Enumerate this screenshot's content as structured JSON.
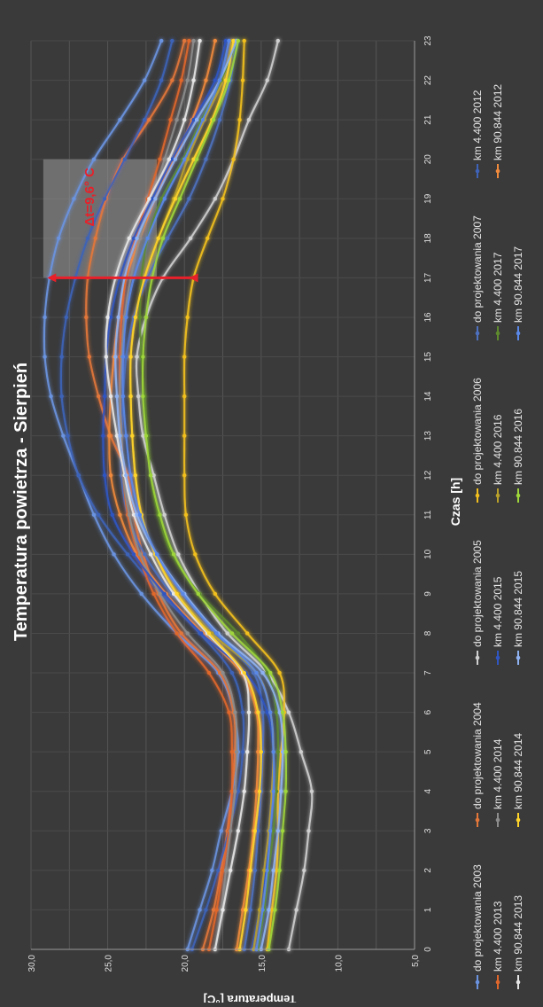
{
  "chart_data": {
    "type": "line",
    "title": "Temperatura powietrza - Sierpień",
    "xlabel": "Czas [h]",
    "ylabel": "Temperatura [°C]",
    "x": [
      0,
      1,
      2,
      3,
      4,
      5,
      6,
      7,
      8,
      9,
      10,
      11,
      12,
      13,
      14,
      15,
      16,
      17,
      18,
      19,
      20,
      21,
      22,
      23
    ],
    "x_ticks": [
      "0",
      "1",
      "2",
      "3",
      "4",
      "5",
      "6",
      "7",
      "8",
      "9",
      "10",
      "11",
      "12",
      "13",
      "14",
      "15",
      "16",
      "17",
      "18",
      "19",
      "20",
      "21",
      "22",
      "23"
    ],
    "ylim": [
      5,
      30
    ],
    "y_ticks": [
      "5,0",
      "10,0",
      "15,0",
      "20,0",
      "25,0",
      "30,0"
    ],
    "grid": true,
    "legend": "bottom",
    "annotation": {
      "text": "Δt=9,6° C",
      "x": 17,
      "y_top": 29.0,
      "y_bottom": 19.4
    },
    "series": [
      {
        "name": "do projektowania 2003",
        "color": "#6a93e0",
        "values": [
          19.8,
          19.0,
          18.2,
          17.6,
          16.9,
          16.5,
          16.8,
          17.8,
          20.5,
          22.8,
          24.6,
          25.9,
          26.9,
          27.9,
          28.7,
          29.1,
          29.1,
          28.8,
          28.2,
          27.2,
          25.9,
          24.2,
          22.6,
          21.5
        ]
      },
      {
        "name": "do projektowania 2004",
        "color": "#e3773a",
        "values": [
          18.8,
          18.1,
          17.6,
          17.2,
          16.9,
          16.7,
          16.8,
          17.7,
          20.2,
          21.7,
          22.7,
          23.3,
          23.7,
          24.8,
          25.6,
          26.2,
          26.4,
          26.3,
          25.8,
          25.1,
          24.0,
          22.3,
          20.8,
          20.0
        ]
      },
      {
        "name": "do projektowania 2005",
        "color": "#cfcfcf",
        "values": [
          13.2,
          12.7,
          12.2,
          11.9,
          11.7,
          12.4,
          13.2,
          14.6,
          17.2,
          19.0,
          20.4,
          21.3,
          22.0,
          22.7,
          23.0,
          23.1,
          22.5,
          21.4,
          19.6,
          18.0,
          16.8,
          15.8,
          14.6,
          13.9
        ]
      },
      {
        "name": "do projektowania 2006",
        "color": "#f2c01e",
        "values": [
          14.6,
          14.3,
          14.0,
          13.9,
          13.9,
          13.7,
          13.5,
          13.8,
          15.9,
          18.0,
          19.3,
          19.9,
          20.0,
          20.0,
          20.0,
          20.0,
          19.8,
          19.4,
          18.5,
          17.5,
          16.8,
          16.4,
          16.2,
          16.1
        ]
      },
      {
        "name": "do projektowania 2007",
        "color": "#4e71bf",
        "values": [
          16.1,
          15.7,
          15.4,
          15.2,
          15.0,
          14.9,
          14.9,
          15.5,
          18.1,
          20.8,
          22.6,
          23.7,
          24.1,
          24.1,
          24.0,
          23.8,
          23.3,
          22.4,
          21.1,
          19.7,
          18.6,
          17.7,
          17.0,
          16.6
        ]
      },
      {
        "name": "km 4.400 2012",
        "color": "#3e63b8",
        "values": [
          19.5,
          18.6,
          17.8,
          17.1,
          16.5,
          16.2,
          16.2,
          16.9,
          19.0,
          21.5,
          23.7,
          25.6,
          26.9,
          27.6,
          28.0,
          28.0,
          27.7,
          27.1,
          26.3,
          25.2,
          23.9,
          22.6,
          21.5,
          20.8
        ]
      },
      {
        "name": "km 90.844 2012",
        "color": "#f08a3c",
        "values": [
          16.6,
          16.2,
          15.8,
          15.5,
          15.3,
          15.2,
          15.3,
          16.3,
          18.8,
          21.2,
          23.1,
          24.2,
          24.8,
          24.9,
          24.8,
          24.6,
          24.3,
          23.8,
          22.9,
          21.9,
          20.7,
          19.5,
          18.6,
          18.0
        ]
      },
      {
        "name": "km 4.400 2013",
        "color": "#e0672b",
        "values": [
          18.4,
          17.9,
          17.5,
          17.1,
          16.9,
          16.9,
          17.1,
          18.4,
          20.5,
          22.0,
          23.0,
          23.7,
          24.0,
          24.1,
          24.2,
          24.2,
          24.1,
          23.8,
          23.2,
          22.4,
          21.6,
          20.9,
          20.2,
          19.7
        ]
      },
      {
        "name": "km 4.400 2014",
        "color": "#8d8d8d",
        "values": [
          18.0,
          17.6,
          17.3,
          17.0,
          16.7,
          16.6,
          16.7,
          17.5,
          19.8,
          21.6,
          22.9,
          23.6,
          24.0,
          24.1,
          24.2,
          24.1,
          23.9,
          23.5,
          22.9,
          22.1,
          21.3,
          20.5,
          19.8,
          19.4
        ]
      },
      {
        "name": "km 4.400 2015",
        "color": "#2f55c2",
        "values": [
          15.6,
          15.1,
          14.7,
          14.4,
          14.2,
          14.2,
          14.6,
          16.0,
          18.9,
          21.3,
          23.3,
          24.7,
          25.2,
          25.3,
          25.2,
          25.1,
          24.8,
          24.2,
          23.3,
          22.1,
          20.8,
          19.4,
          18.0,
          17.3
        ]
      },
      {
        "name": "km 4.400 2016",
        "color": "#b8a02a",
        "values": [
          15.5,
          15.1,
          14.8,
          14.5,
          14.3,
          14.2,
          14.4,
          15.3,
          18.2,
          20.4,
          21.9,
          22.8,
          23.2,
          23.4,
          23.5,
          23.5,
          23.2,
          22.6,
          21.7,
          20.7,
          19.8,
          18.7,
          17.5,
          16.9
        ]
      },
      {
        "name": "km 4.400 2017",
        "color": "#5e8a2e",
        "values": [
          15.2,
          14.8,
          14.5,
          14.2,
          14.0,
          13.9,
          14.0,
          14.6,
          16.5,
          19.0,
          20.8,
          21.7,
          22.2,
          22.4,
          22.6,
          22.8,
          22.9,
          22.8,
          22.4,
          21.5,
          20.1,
          18.9,
          17.6,
          16.6
        ]
      },
      {
        "name": "km 90.844 2013",
        "color": "#e6e6e6",
        "values": [
          18.0,
          17.5,
          17.0,
          16.5,
          16.1,
          15.9,
          15.8,
          16.2,
          18.5,
          20.7,
          22.2,
          23.3,
          23.9,
          24.4,
          24.8,
          25.1,
          25.0,
          24.5,
          23.6,
          22.3,
          21.0,
          20.0,
          19.4,
          19.0
        ]
      },
      {
        "name": "km 90.844 2014",
        "color": "#ffd42a",
        "values": [
          16.4,
          16.0,
          15.7,
          15.4,
          15.1,
          15.0,
          15.2,
          16.1,
          18.4,
          20.5,
          21.9,
          22.8,
          23.2,
          23.4,
          23.5,
          23.5,
          23.2,
          22.6,
          21.7,
          20.6,
          19.4,
          18.2,
          17.3,
          16.8
        ]
      },
      {
        "name": "km 90.844 2015",
        "color": "#8fb2f2",
        "values": [
          15.0,
          14.5,
          14.2,
          13.9,
          13.7,
          13.6,
          13.8,
          14.9,
          17.8,
          20.0,
          21.8,
          23.1,
          23.8,
          24.2,
          24.4,
          24.5,
          24.3,
          23.9,
          23.1,
          21.9,
          20.6,
          19.2,
          17.7,
          16.6
        ]
      },
      {
        "name": "km 90.844 2016",
        "color": "#9fd63a",
        "values": [
          14.5,
          14.1,
          13.8,
          13.6,
          13.4,
          13.4,
          13.6,
          14.4,
          16.9,
          19.1,
          20.7,
          21.6,
          22.2,
          22.5,
          22.7,
          22.7,
          22.5,
          22.1,
          21.4,
          20.3,
          19.2,
          18.1,
          17.1,
          16.5
        ]
      },
      {
        "name": "km 90.844 2017",
        "color": "#5a88e8",
        "values": [
          15.3,
          14.9,
          14.6,
          14.4,
          14.2,
          14.2,
          14.4,
          15.3,
          17.9,
          20.1,
          21.8,
          22.9,
          23.5,
          23.8,
          24.0,
          24.0,
          23.8,
          23.3,
          22.4,
          21.3,
          20.0,
          18.8,
          17.7,
          17.1
        ]
      }
    ]
  }
}
